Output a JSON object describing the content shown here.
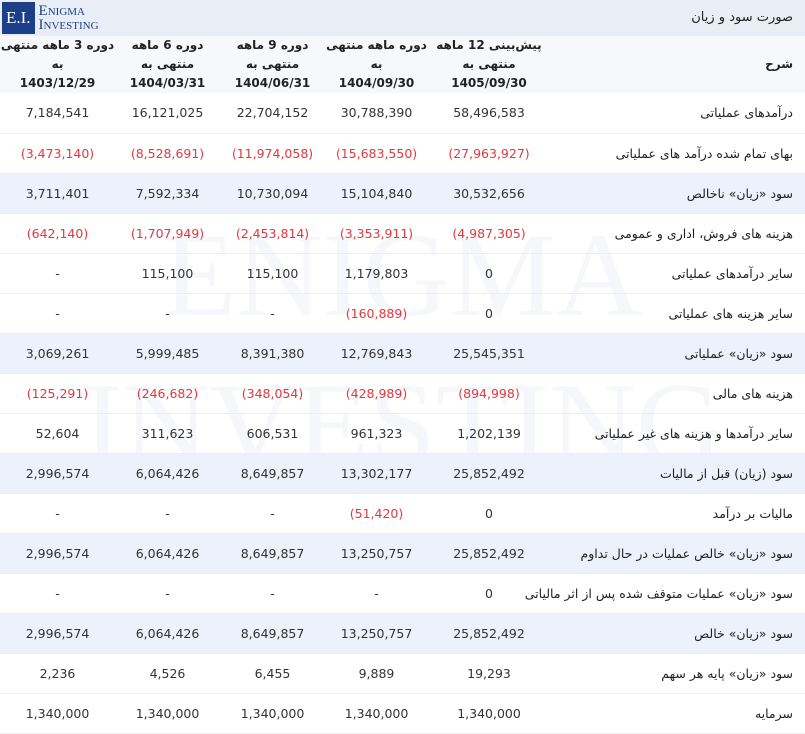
{
  "header": {
    "title": "صورت سود و زیان",
    "logo": {
      "mark": "E.I.",
      "name": "Enigma Investing"
    },
    "watermark": "ENIGMA\nINVESTING"
  },
  "table": {
    "label_heading": "شرح",
    "columns": [
      {
        "heading": "پیش‌بینی 12 ماهه منتهی به",
        "date": "1405/09/30"
      },
      {
        "heading": "دوره ماهه منتهی به",
        "date": "1404/09/30"
      },
      {
        "heading": "دوره 9 ماهه منتهی به",
        "date": "1404/06/31"
      },
      {
        "heading": "دوره 6 ماهه منتهی به",
        "date": "1404/03/31"
      },
      {
        "heading": "دوره 3 ماهه منتهی به",
        "date": "1403/12/29"
      }
    ],
    "rows": [
      {
        "label": "درآمدهای عملیاتی",
        "values": [
          "58,496,583",
          "30,788,390",
          "22,704,152",
          "16,121,025",
          "7,184,541"
        ]
      },
      {
        "label": "بهای تمام شده درآمد های عملیاتی",
        "values": [
          "(27,963,927)",
          "(15,683,550)",
          "(11,974,058)",
          "(8,528,691)",
          "(3,473,140)"
        ]
      },
      {
        "label": "سود «زیان» ناخالص",
        "values": [
          "30,532,656",
          "15,104,840",
          "10,730,094",
          "7,592,334",
          "3,711,401"
        ]
      },
      {
        "label": "هزینه های فروش، اداری و عمومی",
        "values": [
          "(4,987,305)",
          "(3,353,911)",
          "(2,453,814)",
          "(1,707,949)",
          "(642,140)"
        ]
      },
      {
        "label": "سایر درآمدهای عملیاتی",
        "values": [
          "0",
          "1,179,803",
          "115,100",
          "115,100",
          "-"
        ]
      },
      {
        "label": "سایر هزینه های عملیاتی",
        "values": [
          "0",
          "(160,889)",
          "-",
          "-",
          "-"
        ]
      },
      {
        "label": "سود «زیان» عملیاتی",
        "values": [
          "25,545,351",
          "12,769,843",
          "8,391,380",
          "5,999,485",
          "3,069,261"
        ]
      },
      {
        "label": "هزینه های مالی",
        "values": [
          "(894,998)",
          "(428,989)",
          "(348,054)",
          "(246,682)",
          "(125,291)"
        ]
      },
      {
        "label": "سایر درآمدها و هزینه های غیر عملیاتی",
        "values": [
          "1,202,139",
          "961,323",
          "606,531",
          "311,623",
          "52,604"
        ]
      },
      {
        "label": "سود (زیان) قبل از مالیات",
        "values": [
          "25,852,492",
          "13,302,177",
          "8,649,857",
          "6,064,426",
          "2,996,574"
        ]
      },
      {
        "label": "مالیات بر درآمد",
        "values": [
          "0",
          "(51,420)",
          "-",
          "-",
          "-"
        ]
      },
      {
        "label": "سود «زیان» خالص عملیات در حال تداوم",
        "values": [
          "25,852,492",
          "13,250,757",
          "8,649,857",
          "6,064,426",
          "2,996,574"
        ]
      },
      {
        "label": "سود «زیان» عملیات متوقف شده پس از اثر مالیاتی",
        "values": [
          "0",
          "-",
          "-",
          "-",
          "-"
        ]
      },
      {
        "label": "سود «زیان» خالص",
        "values": [
          "25,852,492",
          "13,250,757",
          "8,649,857",
          "6,064,426",
          "2,996,574"
        ]
      },
      {
        "label": "سود «زیان» پایه هر سهم",
        "values": [
          "19,293",
          "9,889",
          "6,455",
          "4,526",
          "2,236"
        ]
      },
      {
        "label": "سرمایه",
        "values": [
          "1,340,000",
          "1,340,000",
          "1,340,000",
          "1,340,000",
          "1,340,000"
        ]
      }
    ]
  }
}
